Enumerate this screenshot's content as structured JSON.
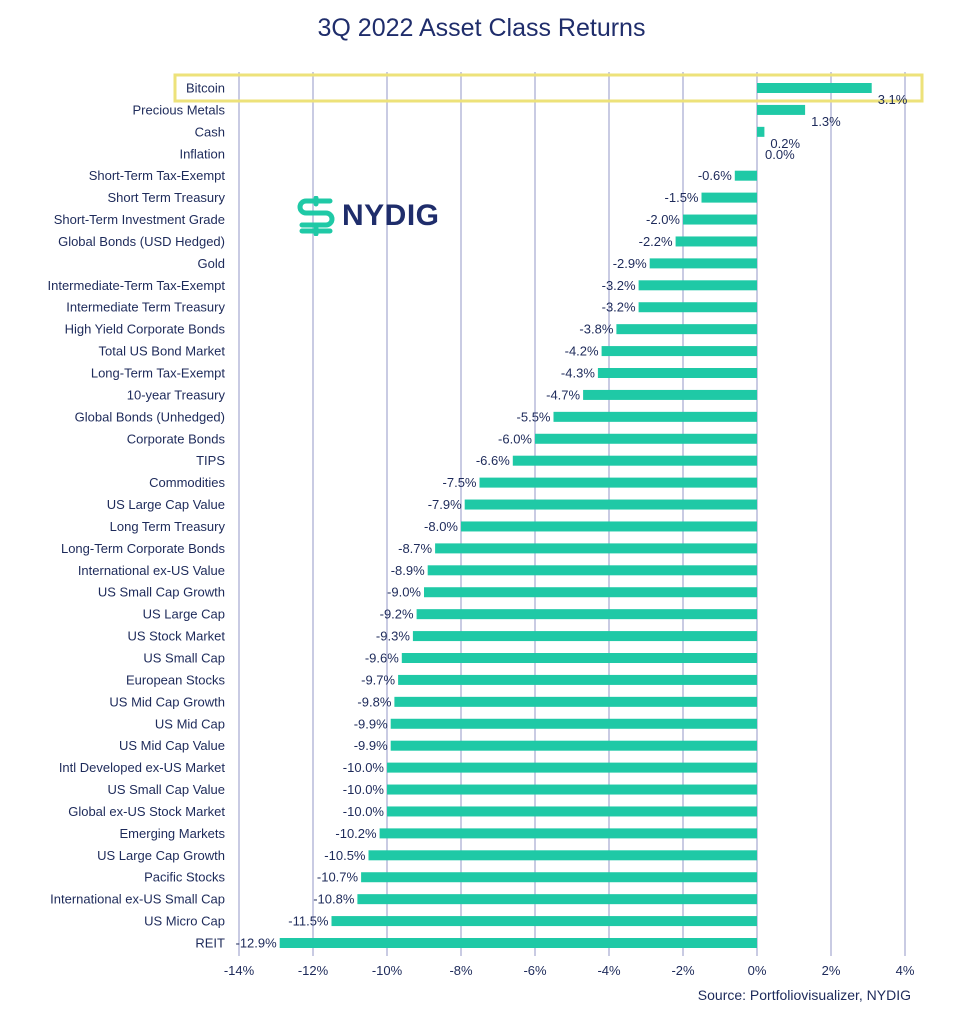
{
  "chart_data": {
    "type": "bar",
    "orientation": "horizontal",
    "title": "3Q 2022 Asset Class Returns",
    "xlabel": "",
    "ylabel": "",
    "xlim": [
      -14,
      4
    ],
    "x_ticks": [
      "-14%",
      "-12%",
      "-10%",
      "-8%",
      "-6%",
      "-4%",
      "-2%",
      "0%",
      "2%",
      "4%"
    ],
    "grid": "vertical",
    "highlighted_category": "Bitcoin",
    "categories": [
      "Bitcoin",
      "Precious Metals",
      "Cash",
      "Inflation",
      "Short-Term Tax-Exempt",
      "Short Term Treasury",
      "Short-Term Investment Grade",
      "Global Bonds (USD Hedged)",
      "Gold",
      "Intermediate-Term Tax-Exempt",
      "Intermediate Term Treasury",
      "High Yield Corporate Bonds",
      "Total US Bond Market",
      "Long-Term Tax-Exempt",
      "10-year Treasury",
      "Global Bonds (Unhedged)",
      "Corporate Bonds",
      "TIPS",
      "Commodities",
      "US Large Cap Value",
      "Long Term Treasury",
      "Long-Term Corporate Bonds",
      "International ex-US Value",
      "US Small Cap Growth",
      "US Large Cap",
      "US Stock Market",
      "US Small Cap",
      "European Stocks",
      "US Mid Cap Growth",
      "US Mid Cap",
      "US Mid Cap Value",
      "Intl Developed ex-US Market",
      "US Small Cap Value",
      "Global ex-US Stock Market",
      "Emerging Markets",
      "US Large Cap Growth",
      "Pacific Stocks",
      "International ex-US Small Cap",
      "US Micro Cap",
      "REIT"
    ],
    "values": [
      3.1,
      1.3,
      0.2,
      0.0,
      -0.6,
      -1.5,
      -2.0,
      -2.2,
      -2.9,
      -3.2,
      -3.2,
      -3.8,
      -4.2,
      -4.3,
      -4.7,
      -5.5,
      -6.0,
      -6.6,
      -7.5,
      -7.9,
      -8.0,
      -8.7,
      -8.9,
      -9.0,
      -9.2,
      -9.3,
      -9.6,
      -9.7,
      -9.8,
      -9.9,
      -9.9,
      -10.0,
      -10.0,
      -10.0,
      -10.2,
      -10.5,
      -10.7,
      -10.8,
      -11.5,
      -12.9
    ],
    "data_labels": [
      "3.1%",
      "1.3%",
      "0.2%",
      "0.0%",
      "-0.6%",
      "-1.5%",
      "-2.0%",
      "-2.2%",
      "-2.9%",
      "-3.2%",
      "-3.2%",
      "-3.8%",
      "-4.2%",
      "-4.3%",
      "-4.7%",
      "-5.5%",
      "-6.0%",
      "-6.6%",
      "-7.5%",
      "-7.9%",
      "-8.0%",
      "-8.7%",
      "-8.9%",
      "-9.0%",
      "-9.2%",
      "-9.3%",
      "-9.6%",
      "-9.7%",
      "-9.8%",
      "-9.9%",
      "-9.9%",
      "-10.0%",
      "-10.0%",
      "-10.0%",
      "-10.2%",
      "-10.5%",
      "-10.7%",
      "-10.8%",
      "-11.5%",
      "-12.9%"
    ],
    "colors": {
      "bar": "#1fc9a6",
      "grid": "#c9cbe3",
      "highlight": "#ede27a",
      "text": "#1d2a5a"
    }
  },
  "logo": {
    "text": "NYDIG"
  },
  "source": "Source: Portfoliovisualizer, NYDIG"
}
